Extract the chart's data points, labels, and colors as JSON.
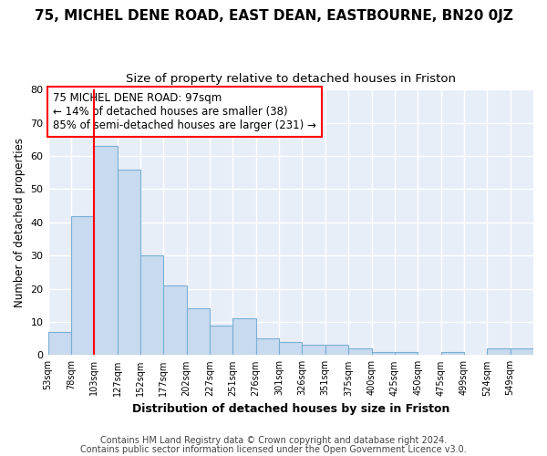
{
  "title1": "75, MICHEL DENE ROAD, EAST DEAN, EASTBOURNE, BN20 0JZ",
  "title2": "Size of property relative to detached houses in Friston",
  "xlabel": "Distribution of detached houses by size in Friston",
  "ylabel": "Number of detached properties",
  "bar_values": [
    7,
    42,
    63,
    56,
    30,
    21,
    14,
    9,
    11,
    5,
    4,
    3,
    3,
    2,
    1,
    1,
    0,
    1,
    0,
    2,
    2
  ],
  "x_labels": [
    "53sqm",
    "78sqm",
    "103sqm",
    "127sqm",
    "152sqm",
    "177sqm",
    "202sqm",
    "227sqm",
    "251sqm",
    "276sqm",
    "301sqm",
    "326sqm",
    "351sqm",
    "375sqm",
    "400sqm",
    "425sqm",
    "450sqm",
    "475sqm",
    "499sqm",
    "524sqm",
    "549sqm"
  ],
  "bar_color": "#c8daef",
  "bar_edge_color": "#7aafd4",
  "bar_edge_width": 0.8,
  "annotation_text": "75 MICHEL DENE ROAD: 97sqm\n← 14% of detached houses are smaller (38)\n85% of semi-detached houses are larger (231) →",
  "annotation_box_color": "white",
  "annotation_box_edge": "red",
  "ylim": [
    0,
    80
  ],
  "yticks": [
    0,
    10,
    20,
    30,
    40,
    50,
    60,
    70,
    80
  ],
  "footer1": "Contains HM Land Registry data © Crown copyright and database right 2024.",
  "footer2": "Contains public sector information licensed under the Open Government Licence v3.0.",
  "bg_color": "#ffffff",
  "plot_bg_color": "#e8eef8",
  "grid_color": "#ffffff",
  "title1_fontsize": 11,
  "title2_fontsize": 9.5,
  "xlabel_fontsize": 9,
  "ylabel_fontsize": 8.5,
  "footer_fontsize": 7,
  "annotation_fontsize": 8.5,
  "red_line_bar_index": 2
}
